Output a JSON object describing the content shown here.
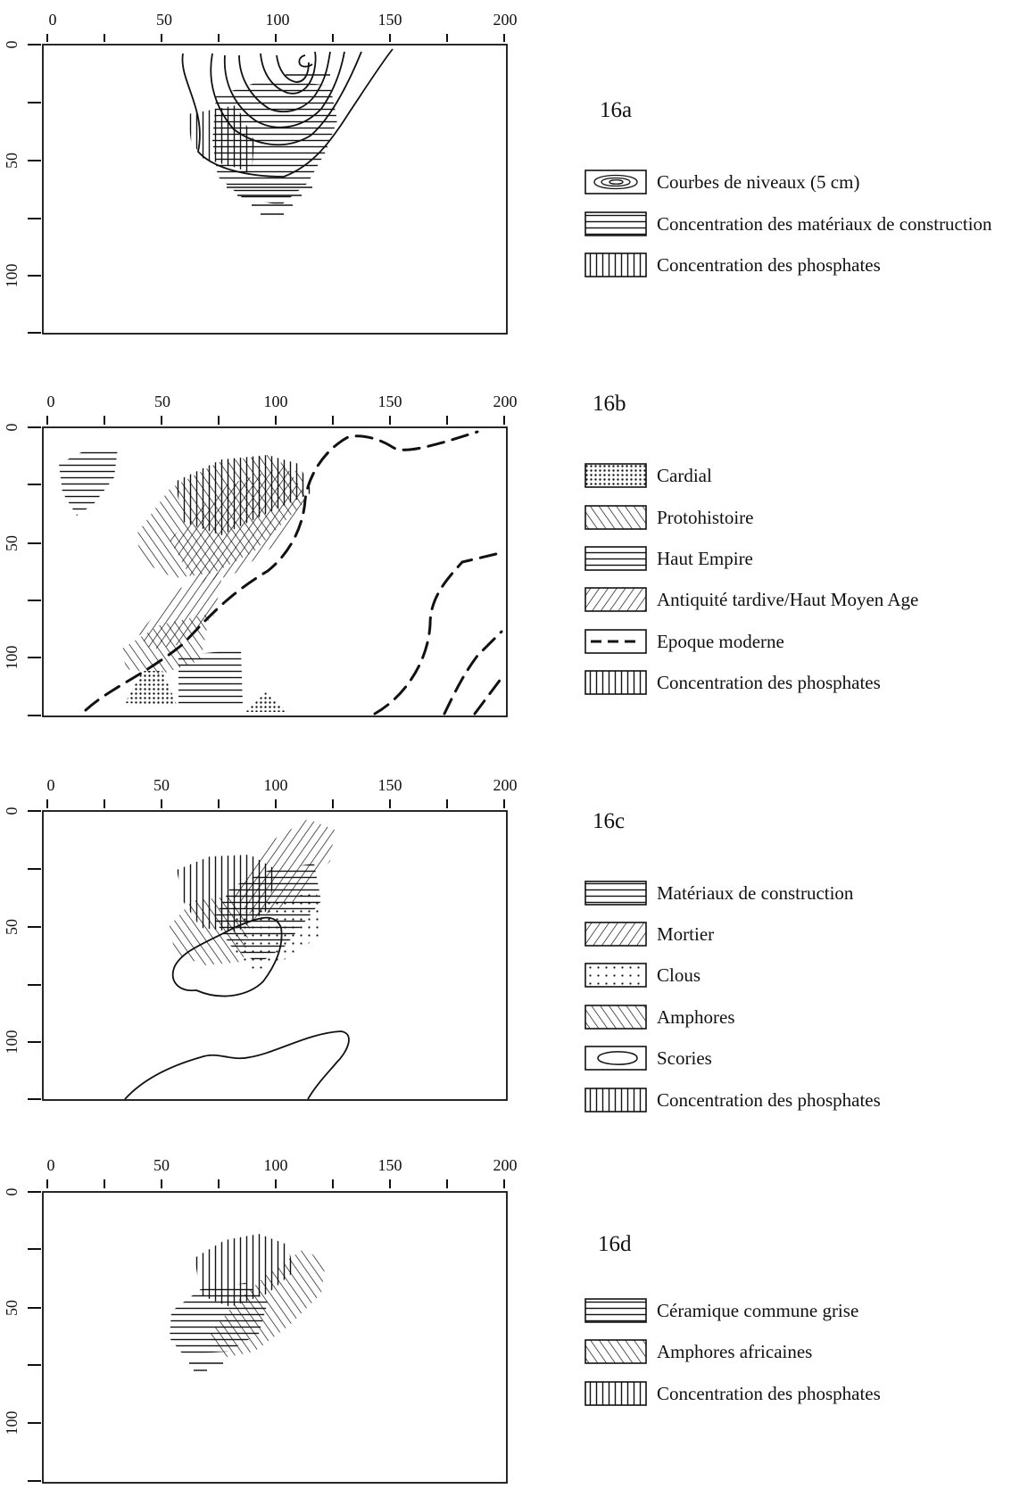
{
  "axes": {
    "x_ticks": [
      "0",
      "50",
      "100",
      "150",
      "200"
    ],
    "y_ticks": [
      "0",
      "50",
      "100"
    ]
  },
  "panels": [
    {
      "id": "16a",
      "label": "16a",
      "legend": [
        {
          "pattern": "contour",
          "label": "Courbes de niveaux (5 cm)"
        },
        {
          "pattern": "horizontal",
          "label": "Concentration des matériaux de construction"
        },
        {
          "pattern": "vertical",
          "label": "Concentration des phosphates"
        }
      ]
    },
    {
      "id": "16b",
      "label": "16b",
      "legend": [
        {
          "pattern": "dots",
          "label": "Cardial"
        },
        {
          "pattern": "backslash",
          "label": "Protohistoire"
        },
        {
          "pattern": "horizontal",
          "label": "Haut Empire"
        },
        {
          "pattern": "slash",
          "label": "Antiquité tardive/Haut Moyen Age"
        },
        {
          "pattern": "dashed",
          "label": "Epoque moderne"
        },
        {
          "pattern": "vertical",
          "label": "Concentration des phosphates"
        }
      ]
    },
    {
      "id": "16c",
      "label": "16c",
      "legend": [
        {
          "pattern": "horizontal",
          "label": "Matériaux de construction"
        },
        {
          "pattern": "slash",
          "label": "Mortier"
        },
        {
          "pattern": "sparse-dots",
          "label": "Clous"
        },
        {
          "pattern": "backslash",
          "label": "Amphores"
        },
        {
          "pattern": "loop",
          "label": "Scories"
        },
        {
          "pattern": "vertical",
          "label": "Concentration des phosphates"
        }
      ]
    },
    {
      "id": "16d",
      "label": "16d",
      "legend": [
        {
          "pattern": "horizontal",
          "label": "Céramique commune grise"
        },
        {
          "pattern": "backslash",
          "label": "Amphores africaines"
        },
        {
          "pattern": "vertical",
          "label": "Concentration des phosphates"
        }
      ]
    }
  ]
}
